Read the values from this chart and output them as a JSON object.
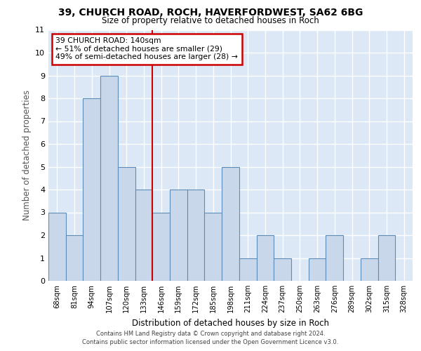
{
  "title1": "39, CHURCH ROAD, ROCH, HAVERFORDWEST, SA62 6BG",
  "title2": "Size of property relative to detached houses in Roch",
  "xlabel": "Distribution of detached houses by size in Roch",
  "ylabel": "Number of detached properties",
  "categories": [
    "68sqm",
    "81sqm",
    "94sqm",
    "107sqm",
    "120sqm",
    "133sqm",
    "146sqm",
    "159sqm",
    "172sqm",
    "185sqm",
    "198sqm",
    "211sqm",
    "224sqm",
    "237sqm",
    "250sqm",
    "263sqm",
    "276sqm",
    "289sqm",
    "302sqm",
    "315sqm",
    "328sqm"
  ],
  "values": [
    3,
    2,
    8,
    9,
    5,
    4,
    3,
    4,
    4,
    3,
    5,
    1,
    2,
    1,
    0,
    1,
    2,
    0,
    1,
    2,
    0
  ],
  "bar_color": "#c8d8ea",
  "bar_edge_color": "#5b8db8",
  "annotation_line1": "39 CHURCH ROAD: 140sqm",
  "annotation_line2": "← 51% of detached houses are smaller (29)",
  "annotation_line3": "49% of semi-detached houses are larger (28) →",
  "annotation_box_color": "#ffffff",
  "annotation_box_edge": "#cc0000",
  "ref_line_color": "#cc0000",
  "ylim": [
    0,
    11
  ],
  "yticks": [
    0,
    1,
    2,
    3,
    4,
    5,
    6,
    7,
    8,
    9,
    10,
    11
  ],
  "footer": "Contains HM Land Registry data © Crown copyright and database right 2024.\nContains public sector information licensed under the Open Government Licence v3.0.",
  "fig_bg_color": "#ffffff",
  "plot_bg_color": "#dce8f5"
}
